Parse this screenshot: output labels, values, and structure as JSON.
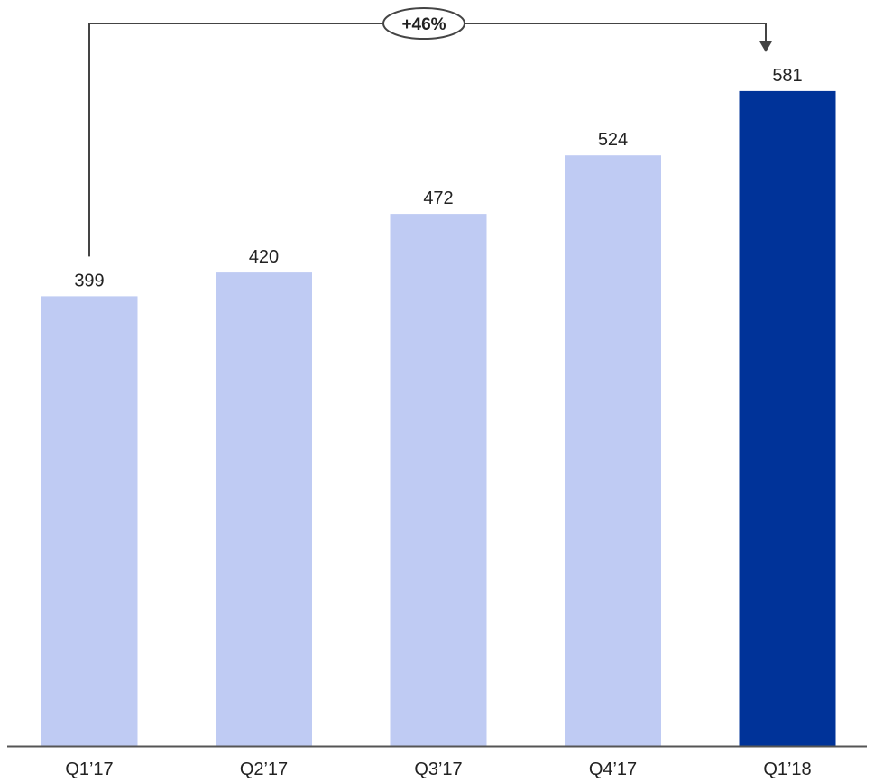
{
  "chart_data": {
    "type": "bar",
    "categories": [
      "Q1’17",
      "Q2’17",
      "Q3’17",
      "Q4’17",
      "Q1’18"
    ],
    "values": [
      399,
      420,
      472,
      524,
      581
    ],
    "title": "",
    "xlabel": "",
    "ylabel": "",
    "grid": false,
    "value_labels": true,
    "colors": {
      "bar": "#bfcbf3",
      "highlight_bar": "#003399",
      "axis": "#555555",
      "bracket": "#444444",
      "text": "#222222"
    },
    "highlight_index": 4,
    "annotation": {
      "label": "+46%",
      "from_index": 0,
      "to_index": 4,
      "arrow_direction": "down"
    }
  }
}
